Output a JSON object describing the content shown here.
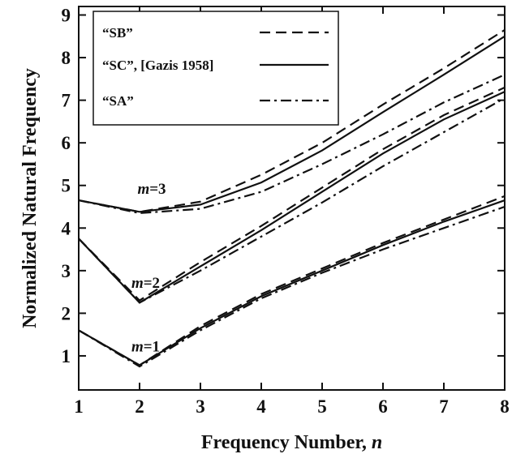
{
  "chart_data": {
    "type": "line",
    "xlabel": "Frequency Number, n",
    "ylabel": "Normalized Natural Frequency",
    "xlim": [
      1,
      8
    ],
    "ylim": [
      0.2,
      9.2
    ],
    "xticks": [
      1,
      2,
      3,
      4,
      5,
      6,
      7,
      8
    ],
    "yticks": [
      1,
      2,
      3,
      4,
      5,
      6,
      7,
      8,
      9
    ],
    "grid": false,
    "legend_position": "top-left",
    "legend": [
      {
        "label": "“SB”",
        "style": "dashed"
      },
      {
        "label": "“SC”, [Gazis 1958]",
        "style": "solid"
      },
      {
        "label": "“SA”",
        "style": "dashdot"
      }
    ],
    "annotations": [
      {
        "text": "m=3",
        "x": 2.2,
        "y": 4.8
      },
      {
        "text": "m=2",
        "x": 2.1,
        "y": 2.6
      },
      {
        "text": "m=1",
        "x": 2.1,
        "y": 1.1
      }
    ],
    "x": [
      1,
      2,
      3,
      4,
      5,
      6,
      7,
      8
    ],
    "series": [
      {
        "name": "“SB”",
        "mode": "m=3",
        "style": "dashed",
        "values": [
          4.65,
          4.38,
          4.62,
          5.25,
          6.0,
          6.9,
          7.75,
          8.65
        ]
      },
      {
        "name": "“SC”, [Gazis 1958]",
        "mode": "m=3",
        "style": "solid",
        "values": [
          4.65,
          4.38,
          4.55,
          5.07,
          5.82,
          6.72,
          7.6,
          8.5
        ]
      },
      {
        "name": "“SA”",
        "mode": "m=3",
        "style": "dashdot",
        "values": [
          4.65,
          4.35,
          4.45,
          4.85,
          5.5,
          6.2,
          6.95,
          7.6
        ]
      },
      {
        "name": "“SB”",
        "mode": "m=2",
        "style": "dashed",
        "values": [
          3.75,
          2.3,
          3.2,
          4.05,
          4.95,
          5.85,
          6.65,
          7.3
        ]
      },
      {
        "name": "“SC”, [Gazis 1958]",
        "mode": "m=2",
        "style": "solid",
        "values": [
          3.75,
          2.25,
          3.1,
          3.95,
          4.85,
          5.75,
          6.55,
          7.2
        ]
      },
      {
        "name": "“SA”",
        "mode": "m=2",
        "style": "dashdot",
        "values": [
          3.75,
          2.25,
          3.0,
          3.8,
          4.6,
          5.45,
          6.25,
          7.05
        ]
      },
      {
        "name": "“SB”",
        "mode": "m=1",
        "style": "dashed",
        "values": [
          1.6,
          0.78,
          1.7,
          2.45,
          3.05,
          3.65,
          4.2,
          4.75
        ]
      },
      {
        "name": "“SC”, [Gazis 1958]",
        "mode": "m=1",
        "style": "solid",
        "values": [
          1.6,
          0.78,
          1.65,
          2.4,
          3.0,
          3.6,
          4.15,
          4.65
        ]
      },
      {
        "name": "“SA”",
        "mode": "m=1",
        "style": "dashdot",
        "values": [
          1.6,
          0.75,
          1.6,
          2.35,
          2.95,
          3.5,
          4.0,
          4.5
        ]
      }
    ]
  }
}
